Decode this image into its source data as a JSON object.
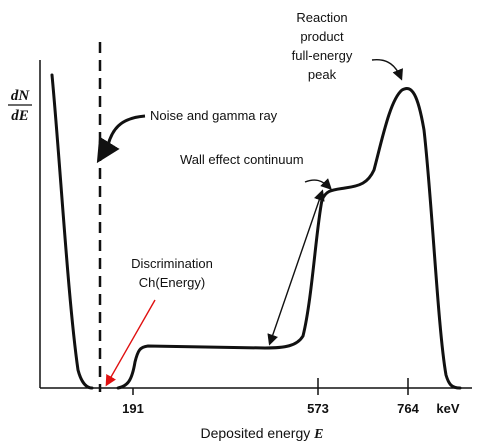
{
  "y_axis_label": {
    "numerator": "dN",
    "denominator": "dE"
  },
  "x_axis": {
    "title": "Deposited energy",
    "symbol": "E",
    "ticks": [
      "191",
      "573",
      "764"
    ],
    "unit": "keV"
  },
  "annotations": {
    "peak": [
      "Reaction",
      "product",
      "full-energy",
      "peak"
    ],
    "noise": "Noise and gamma ray",
    "wall": "Wall effect continuum",
    "discrimination": [
      "Discrimination",
      "Ch(Energy)"
    ]
  }
}
